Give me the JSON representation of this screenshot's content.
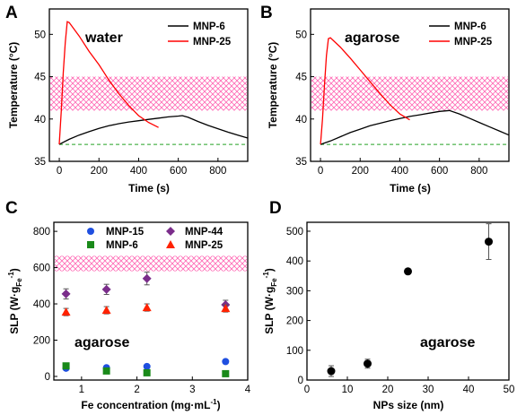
{
  "chart_data": [
    {
      "panel": "A",
      "type": "line",
      "annotation": "water",
      "xlabel": "Time (s)",
      "ylabel": "Temperature (°C)",
      "xlim": [
        -50,
        950
      ],
      "ylim": [
        35,
        53
      ],
      "xticks": [
        0,
        200,
        400,
        600,
        800
      ],
      "yticks": [
        35,
        40,
        45,
        50
      ],
      "band": {
        "y0": 41,
        "y1": 45,
        "color": "#ff69b4"
      },
      "reference_line": {
        "y": 37,
        "color": "#22a022"
      },
      "series": [
        {
          "name": "MNP-6",
          "color": "#000000",
          "x": [
            0,
            50,
            100,
            150,
            200,
            250,
            300,
            350,
            400,
            450,
            500,
            550,
            600,
            620,
            650,
            700,
            750,
            800,
            850,
            900,
            950
          ],
          "y": [
            37.0,
            37.6,
            38.1,
            38.5,
            38.9,
            39.2,
            39.45,
            39.65,
            39.8,
            39.95,
            40.1,
            40.25,
            40.35,
            40.4,
            40.2,
            39.7,
            39.25,
            38.85,
            38.45,
            38.1,
            37.75
          ]
        },
        {
          "name": "MNP-25",
          "color": "#ff0000",
          "x": [
            0,
            10,
            20,
            30,
            40,
            50,
            100,
            150,
            200,
            250,
            300,
            350,
            400,
            450,
            500
          ],
          "y": [
            37.0,
            41,
            45.5,
            49,
            51.5,
            51.4,
            49.8,
            48.0,
            46.4,
            44.6,
            43.0,
            41.6,
            40.4,
            39.6,
            39.0
          ]
        }
      ]
    },
    {
      "panel": "B",
      "type": "line",
      "annotation": "agarose",
      "xlabel": "Time (s)",
      "ylabel": "Temperature (°C)",
      "xlim": [
        -50,
        950
      ],
      "ylim": [
        35,
        53
      ],
      "xticks": [
        0,
        200,
        400,
        600,
        800
      ],
      "yticks": [
        35,
        40,
        45,
        50
      ],
      "band": {
        "y0": 41,
        "y1": 45,
        "color": "#ff69b4"
      },
      "reference_line": {
        "y": 37,
        "color": "#22a022"
      },
      "series": [
        {
          "name": "MNP-6",
          "color": "#000000",
          "x": [
            0,
            50,
            100,
            150,
            200,
            250,
            300,
            350,
            400,
            450,
            500,
            550,
            600,
            650,
            700,
            750,
            800,
            850,
            900,
            950
          ],
          "y": [
            37.0,
            37.4,
            37.9,
            38.4,
            38.8,
            39.2,
            39.5,
            39.8,
            40.05,
            40.3,
            40.5,
            40.7,
            40.9,
            41.0,
            40.6,
            40.1,
            39.6,
            39.1,
            38.6,
            38.1
          ]
        },
        {
          "name": "MNP-25",
          "color": "#ff0000",
          "x": [
            0,
            10,
            20,
            30,
            40,
            50,
            100,
            150,
            200,
            250,
            300,
            350,
            400,
            450
          ],
          "y": [
            37.0,
            40,
            44,
            47.5,
            49.5,
            49.6,
            48.5,
            47.2,
            45.8,
            44.4,
            43.0,
            41.7,
            40.6,
            39.9
          ]
        }
      ]
    },
    {
      "panel": "C",
      "type": "scatter",
      "annotation": "agarose",
      "xlabel_main": "Fe concentration (mg·mL",
      "xlabel_sup": "-1",
      "xlabel_end": ")",
      "ylabel_main": "SLP (W·g",
      "ylabel_sub": "Fe",
      "ylabel_sup": "-1",
      "ylabel_end": ")",
      "xlim": [
        0.5,
        4
      ],
      "ylim": [
        -20,
        850
      ],
      "xticks": [
        1,
        2,
        3,
        4
      ],
      "yticks": [
        0,
        200,
        400,
        600,
        800
      ],
      "band": {
        "y0": 580,
        "y1": 665,
        "color": "#ff69b4"
      },
      "series": [
        {
          "name": "MNP-15",
          "marker": "circle",
          "color": "#1f4fe0",
          "x": [
            0.72,
            1.45,
            2.18,
            3.6
          ],
          "y": [
            45,
            48,
            55,
            82
          ],
          "err": [
            0,
            0,
            0,
            0
          ]
        },
        {
          "name": "MNP-44",
          "marker": "diamond",
          "color": "#7b2d8b",
          "x": [
            0.72,
            1.45,
            2.18,
            3.6
          ],
          "y": [
            455,
            480,
            540,
            395
          ],
          "err": [
            28,
            28,
            35,
            25
          ]
        },
        {
          "name": "MNP-6",
          "marker": "square",
          "color": "#1a8a1a",
          "x": [
            0.72,
            1.45,
            2.18,
            3.6
          ],
          "y": [
            58,
            30,
            20,
            15
          ],
          "err": [
            0,
            0,
            0,
            0
          ]
        },
        {
          "name": "MNP-25",
          "marker": "triangle",
          "color": "#ff2200",
          "x": [
            0.72,
            1.45,
            2.18,
            3.6
          ],
          "y": [
            355,
            365,
            380,
            375
          ],
          "err": [
            20,
            20,
            20,
            20
          ]
        }
      ]
    },
    {
      "panel": "D",
      "type": "scatter",
      "annotation": "agarose",
      "xlabel": "NPs size (nm)",
      "ylabel_main": "SLP (W·g",
      "ylabel_sub": "Fe",
      "ylabel_sup": "-1",
      "ylabel_end": ")",
      "xlim": [
        0,
        50
      ],
      "ylim": [
        0,
        530
      ],
      "xticks": [
        0,
        10,
        20,
        30,
        40,
        50
      ],
      "yticks": [
        0,
        100,
        200,
        300,
        400,
        500
      ],
      "series": [
        {
          "name": "",
          "marker": "circle",
          "color": "#000000",
          "x": [
            6,
            15,
            25,
            45
          ],
          "y": [
            30,
            55,
            365,
            465
          ],
          "err": [
            18,
            15,
            8,
            60
          ]
        }
      ]
    }
  ]
}
